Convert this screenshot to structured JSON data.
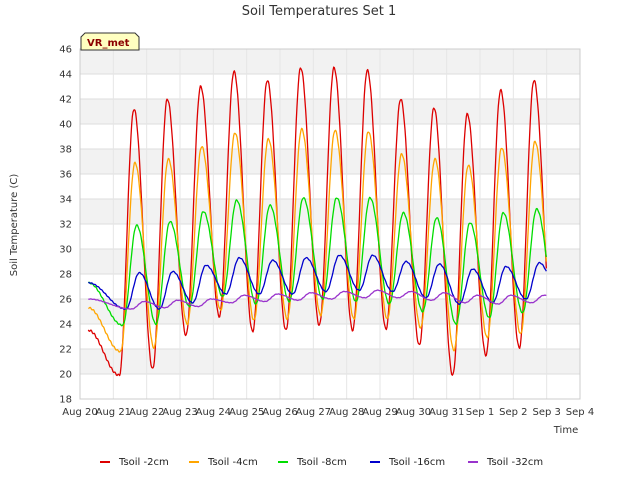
{
  "chart_data": {
    "type": "line",
    "title": "Soil Temperatures Set 1",
    "xlabel": "Time",
    "ylabel": "Soil Temperature (C)",
    "badge": "VR_met",
    "ylim": [
      18,
      46
    ],
    "yticks": [
      18,
      20,
      22,
      24,
      26,
      28,
      30,
      32,
      34,
      36,
      38,
      40,
      42,
      44,
      46
    ],
    "xlim": [
      "Aug 20",
      "Sep 4"
    ],
    "xticks": [
      "Aug 20",
      "Aug 21",
      "Aug 22",
      "Aug 23",
      "Aug 24",
      "Aug 25",
      "Aug 26",
      "Aug 27",
      "Aug 28",
      "Aug 29",
      "Aug 30",
      "Aug 31",
      "Sep 1",
      "Sep 2",
      "Sep 3",
      "Sep 4"
    ],
    "grid": true,
    "legend_position": "bottom",
    "days": [
      "Aug 21",
      "Aug 22",
      "Aug 23",
      "Aug 24",
      "Aug 25",
      "Aug 26",
      "Aug 27",
      "Aug 28",
      "Aug 29",
      "Aug 30",
      "Aug 31",
      "Sep 1",
      "Sep 2",
      "Sep 3"
    ],
    "series": [
      {
        "name": "Tsoil -2cm",
        "color": "#dd0000",
        "start": 23.5,
        "end": 25.3,
        "max": [
          41.2,
          42.0,
          43.0,
          44.2,
          43.5,
          44.5,
          44.5,
          44.3,
          42.0,
          41.3,
          40.8,
          42.7,
          43.5,
          43.3
        ],
        "min": [
          19.9,
          20.4,
          23.1,
          24.6,
          23.4,
          23.5,
          23.9,
          23.5,
          23.6,
          22.3,
          19.9,
          21.5,
          22.1,
          23.2
        ]
      },
      {
        "name": "Tsoil -4cm",
        "color": "#ffa500",
        "start": 25.3,
        "end": 26.7,
        "max": [
          36.9,
          37.2,
          38.2,
          39.3,
          38.8,
          39.6,
          39.5,
          39.4,
          37.6,
          37.2,
          36.7,
          38.1,
          38.6,
          38.7
        ],
        "min": [
          21.8,
          22.1,
          24.0,
          25.1,
          24.3,
          24.4,
          24.7,
          24.4,
          24.4,
          23.7,
          21.9,
          22.9,
          23.2,
          23.9
        ]
      },
      {
        "name": "Tsoil -8cm",
        "color": "#00dd00",
        "start": 27.3,
        "end": 28.6,
        "max": [
          31.9,
          32.2,
          33.0,
          33.9,
          33.5,
          34.1,
          34.1,
          34.1,
          32.9,
          32.5,
          32.1,
          32.9,
          33.2,
          33.4
        ],
        "min": [
          23.9,
          24.0,
          25.4,
          26.2,
          25.6,
          25.8,
          26.0,
          25.8,
          25.6,
          25.0,
          24.0,
          24.5,
          24.9,
          25.5
        ]
      },
      {
        "name": "Tsoil -16cm",
        "color": "#0000cc",
        "start": 27.3,
        "end": 28.3,
        "max": [
          28.1,
          28.2,
          28.7,
          29.3,
          29.1,
          29.3,
          29.5,
          29.5,
          29.0,
          28.8,
          28.4,
          28.6,
          28.9,
          29.0
        ],
        "min": [
          25.2,
          25.2,
          25.7,
          26.4,
          26.4,
          26.4,
          26.6,
          26.7,
          26.6,
          26.1,
          25.6,
          25.7,
          26.0,
          26.3
        ]
      },
      {
        "name": "Tsoil -32cm",
        "color": "#9933cc",
        "start": 26.0,
        "end": 26.4,
        "max": [
          25.8,
          25.9,
          26.0,
          26.3,
          26.4,
          26.5,
          26.6,
          26.7,
          26.6,
          26.5,
          26.3,
          26.3,
          26.3,
          26.4
        ],
        "min": [
          25.2,
          25.3,
          25.4,
          25.7,
          25.8,
          25.9,
          26.0,
          26.1,
          26.1,
          25.9,
          25.7,
          25.6,
          25.7,
          25.8
        ]
      }
    ]
  }
}
